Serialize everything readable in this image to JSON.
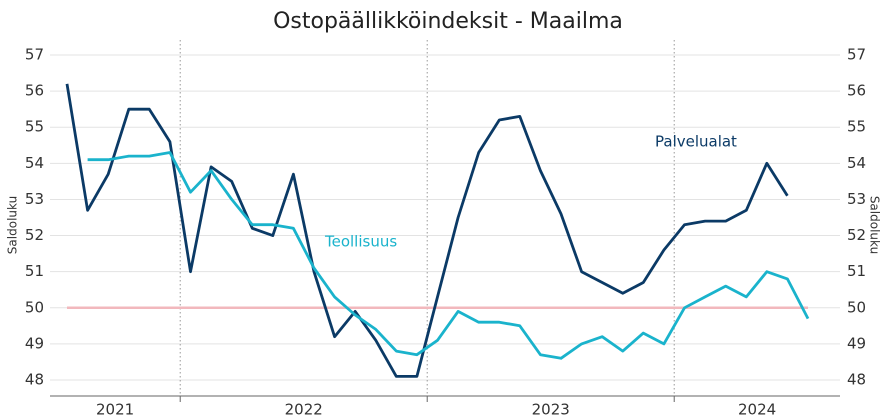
{
  "chart_data": {
    "type": "line",
    "title": "Ostopäällikköindeksit - Maailma",
    "ylabel": "Saldoluku",
    "y2label": "Saldoluku",
    "categories": [
      null,
      null,
      null,
      null,
      null,
      null,
      null,
      null,
      null,
      null,
      null,
      null,
      null,
      null,
      null,
      null,
      null,
      null,
      null,
      null,
      null,
      null,
      null,
      null,
      null,
      null,
      null,
      null,
      null,
      null,
      null,
      null,
      null,
      null,
      null,
      null,
      null
    ],
    "year_labels": [
      "2021",
      "2022",
      "2023",
      "2024"
    ],
    "series": [
      {
        "name": "Palvelualat",
        "color": "#0b3a66",
        "values": [
          56.2,
          52.7,
          53.7,
          55.5,
          55.5,
          54.6,
          51.0,
          53.9,
          53.5,
          52.2,
          52.0,
          53.7,
          51.0,
          49.2,
          49.9,
          49.1,
          48.1,
          48.1,
          50.3,
          52.5,
          54.3,
          55.2,
          55.3,
          53.8,
          52.6,
          51.0,
          50.7,
          50.4,
          50.7,
          51.6,
          52.3,
          52.4,
          52.4,
          52.7,
          54.0,
          53.1,
          null
        ]
      },
      {
        "name": "Teollisuus",
        "color": "#1ab3cc",
        "values": [
          null,
          54.1,
          54.1,
          54.2,
          54.2,
          54.3,
          53.2,
          53.8,
          53.0,
          52.3,
          52.3,
          52.2,
          51.1,
          50.3,
          49.8,
          49.4,
          48.8,
          48.7,
          49.1,
          49.9,
          49.6,
          49.6,
          49.5,
          48.7,
          48.6,
          49.0,
          49.2,
          48.8,
          49.3,
          49.0,
          50.0,
          50.3,
          50.6,
          50.3,
          51.0,
          50.8,
          49.7
        ]
      }
    ],
    "reference_line": 50,
    "reference_color": "#f2b8bd",
    "ylim": [
      48,
      57
    ],
    "yticks": [
      48,
      49,
      50,
      51,
      52,
      53,
      54,
      55,
      56,
      57
    ],
    "y2lim": [
      48,
      57
    ],
    "y2ticks": [
      48,
      49,
      50,
      51,
      52,
      53,
      54,
      55,
      56,
      57
    ],
    "grid": true
  }
}
